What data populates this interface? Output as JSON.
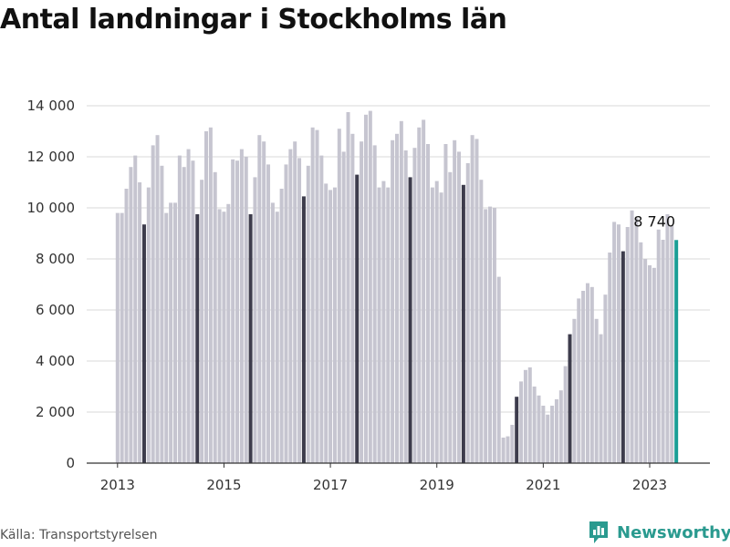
{
  "title": "Antal landningar i Stockholms län",
  "source": "Källa: Transportstyrelsen",
  "brand": {
    "name": "Newsworthy",
    "icon": "newsworthy-logo-icon",
    "color": "#2a9a8f"
  },
  "colors": {
    "bar": "#c6c5d0",
    "highlight": "#3d3c4c",
    "latest": "#1a9e96"
  },
  "chart_data": {
    "type": "bar",
    "title": "Antal landningar i Stockholms län",
    "xlabel": "",
    "ylabel": "",
    "ylim": [
      0,
      14000
    ],
    "yticks": [
      0,
      2000,
      4000,
      6000,
      8000,
      10000,
      12000,
      14000
    ],
    "ytick_labels": [
      "0",
      "2 000",
      "4 000",
      "6 000",
      "8 000",
      "10 000",
      "12 000",
      "14 000"
    ],
    "x_start": "2013-01",
    "xtick_labels": [
      "2013",
      "2015",
      "2017",
      "2019",
      "2021",
      "2023"
    ],
    "grid": true,
    "highlight_month": "July",
    "series": [
      {
        "values": [
          9800,
          9800,
          10750,
          11600,
          12050,
          11000,
          9350,
          10800,
          12450,
          12850,
          11650,
          9800,
          10200,
          10200,
          12050,
          11600,
          12300,
          11850,
          9750,
          11100,
          13000,
          13150,
          11400,
          9950,
          9850,
          10150,
          11900,
          11850,
          12300,
          12000,
          9750,
          11200,
          12850,
          12600,
          11700,
          10200,
          9850,
          10750,
          11700,
          12300,
          12600,
          11950,
          10450,
          11650,
          13150,
          13050,
          12050,
          10950,
          10700,
          10800,
          13100,
          12200,
          13750,
          12900,
          11300,
          12600,
          13650,
          13800,
          12450,
          10800,
          11050,
          10800,
          12650,
          12900,
          13400,
          12250,
          11200,
          12350,
          13150,
          13450,
          12500,
          10800,
          11050,
          10600,
          12500,
          11400,
          12650,
          12200,
          10900,
          11750,
          12850,
          12700,
          11100,
          9950,
          10050,
          10000,
          7300,
          1000,
          1050,
          1500,
          2600,
          3200,
          3650,
          3750,
          3000,
          2650,
          2250,
          1900,
          2250,
          2500,
          2850,
          3800,
          5050,
          5650,
          6450,
          6750,
          7050,
          6900,
          5650,
          5050,
          6600,
          8250,
          9450,
          9350,
          8300,
          9250,
          9900,
          9600,
          8650,
          8000,
          7750,
          7650,
          9150,
          8750,
          9750,
          9300,
          8740
        ]
      }
    ],
    "annotation": {
      "label": "8 740",
      "value": 8740
    }
  }
}
